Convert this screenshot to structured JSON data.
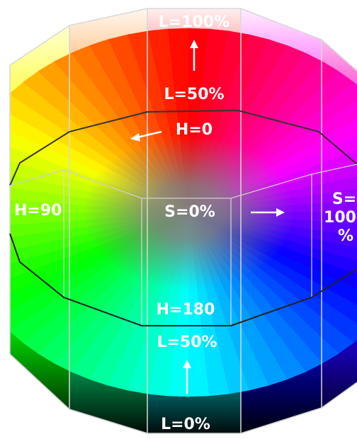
{
  "labels": {
    "lightness_top": "L=100%",
    "lightness_mid_top": "L=50%",
    "hue_0": "H=0",
    "hue_90": "H=90",
    "saturation_0": "S=0%",
    "saturation_100_line1": "S=",
    "saturation_100_line2": "100",
    "saturation_100_line3": "%",
    "hue_180": "H=180",
    "lightness_mid_bottom": "L=50%",
    "lightness_bottom": "L=0%"
  },
  "colors": {
    "red": "#ff0000",
    "yellow": "#ffff00",
    "green": "#00ff00",
    "cyan": "#00ffff",
    "blue": "#0000ff",
    "magenta": "#ff00ff",
    "gray": "#808080",
    "black": "#000000",
    "white": "#ffffff"
  }
}
